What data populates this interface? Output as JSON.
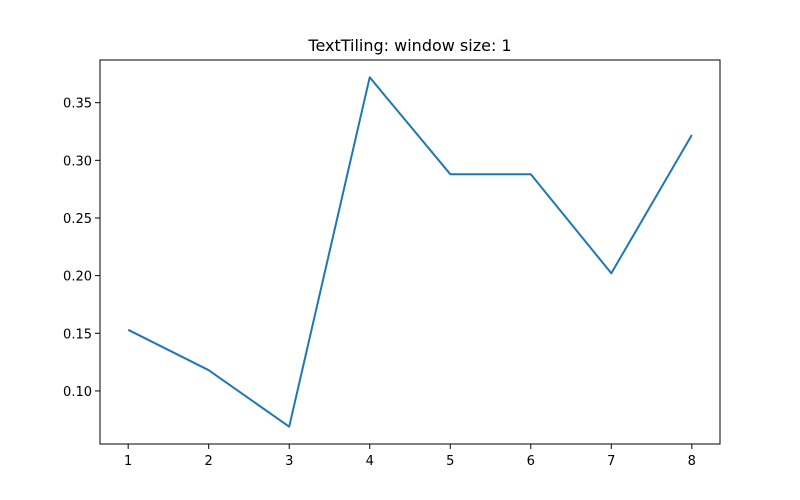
{
  "chart_data": {
    "type": "line",
    "title": "TextTiling: window size: 1",
    "xlabel": "",
    "ylabel": "",
    "x": [
      1,
      2,
      3,
      4,
      5,
      6,
      7,
      8
    ],
    "series": [
      {
        "values": [
          0.153,
          0.118,
          0.069,
          0.372,
          0.288,
          0.288,
          0.202,
          0.322
        ]
      }
    ],
    "xticks": [
      "1",
      "2",
      "3",
      "4",
      "5",
      "6",
      "7",
      "8"
    ],
    "yticks": [
      "0.10",
      "0.15",
      "0.20",
      "0.25",
      "0.30",
      "0.35"
    ],
    "ylim": [
      0.054,
      0.387
    ],
    "xlim": [
      0.65,
      8.35
    ],
    "grid": false,
    "colors": {
      "line": "#1f77b4",
      "axes": "#000000"
    }
  }
}
